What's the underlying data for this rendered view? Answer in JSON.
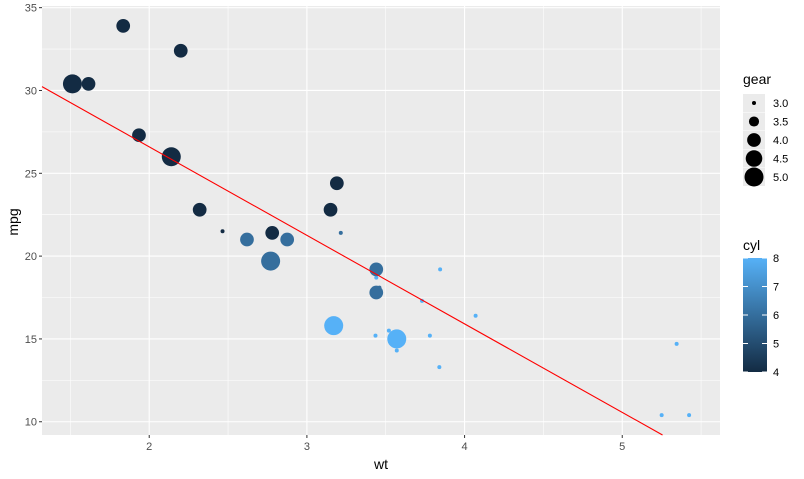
{
  "chart_data": {
    "type": "scatter",
    "xlabel": "wt",
    "ylabel": "mpg",
    "xlim": [
      1.32,
      5.62
    ],
    "ylim": [
      9.2,
      35.1
    ],
    "x_ticks": [
      2,
      3,
      4,
      5
    ],
    "y_ticks": [
      10,
      15,
      20,
      25,
      30,
      35
    ],
    "grid": true,
    "points": [
      {
        "wt": 2.62,
        "mpg": 21.0,
        "cyl": 6,
        "gear": 4
      },
      {
        "wt": 2.875,
        "mpg": 21.0,
        "cyl": 6,
        "gear": 4
      },
      {
        "wt": 2.32,
        "mpg": 22.8,
        "cyl": 4,
        "gear": 4
      },
      {
        "wt": 3.215,
        "mpg": 21.4,
        "cyl": 6,
        "gear": 3
      },
      {
        "wt": 3.44,
        "mpg": 18.7,
        "cyl": 8,
        "gear": 3
      },
      {
        "wt": 3.46,
        "mpg": 18.1,
        "cyl": 6,
        "gear": 3
      },
      {
        "wt": 3.57,
        "mpg": 14.3,
        "cyl": 8,
        "gear": 3
      },
      {
        "wt": 3.19,
        "mpg": 24.4,
        "cyl": 4,
        "gear": 4
      },
      {
        "wt": 3.15,
        "mpg": 22.8,
        "cyl": 4,
        "gear": 4
      },
      {
        "wt": 3.44,
        "mpg": 19.2,
        "cyl": 6,
        "gear": 4
      },
      {
        "wt": 3.44,
        "mpg": 17.8,
        "cyl": 6,
        "gear": 4
      },
      {
        "wt": 4.07,
        "mpg": 16.4,
        "cyl": 8,
        "gear": 3
      },
      {
        "wt": 3.73,
        "mpg": 17.3,
        "cyl": 8,
        "gear": 3
      },
      {
        "wt": 3.78,
        "mpg": 15.2,
        "cyl": 8,
        "gear": 3
      },
      {
        "wt": 5.25,
        "mpg": 10.4,
        "cyl": 8,
        "gear": 3
      },
      {
        "wt": 5.424,
        "mpg": 10.4,
        "cyl": 8,
        "gear": 3
      },
      {
        "wt": 5.345,
        "mpg": 14.7,
        "cyl": 8,
        "gear": 3
      },
      {
        "wt": 2.2,
        "mpg": 32.4,
        "cyl": 4,
        "gear": 4
      },
      {
        "wt": 1.615,
        "mpg": 30.4,
        "cyl": 4,
        "gear": 4
      },
      {
        "wt": 1.835,
        "mpg": 33.9,
        "cyl": 4,
        "gear": 4
      },
      {
        "wt": 2.465,
        "mpg": 21.5,
        "cyl": 4,
        "gear": 3
      },
      {
        "wt": 3.52,
        "mpg": 15.5,
        "cyl": 8,
        "gear": 3
      },
      {
        "wt": 3.435,
        "mpg": 15.2,
        "cyl": 8,
        "gear": 3
      },
      {
        "wt": 3.84,
        "mpg": 13.3,
        "cyl": 8,
        "gear": 3
      },
      {
        "wt": 3.845,
        "mpg": 19.2,
        "cyl": 8,
        "gear": 3
      },
      {
        "wt": 1.935,
        "mpg": 27.3,
        "cyl": 4,
        "gear": 4
      },
      {
        "wt": 2.14,
        "mpg": 26.0,
        "cyl": 4,
        "gear": 5
      },
      {
        "wt": 1.513,
        "mpg": 30.4,
        "cyl": 4,
        "gear": 5
      },
      {
        "wt": 3.17,
        "mpg": 15.8,
        "cyl": 8,
        "gear": 5
      },
      {
        "wt": 2.77,
        "mpg": 19.7,
        "cyl": 6,
        "gear": 5
      },
      {
        "wt": 3.57,
        "mpg": 15.0,
        "cyl": 8,
        "gear": 5
      },
      {
        "wt": 2.78,
        "mpg": 21.4,
        "cyl": 4,
        "gear": 4
      }
    ],
    "trend_line": {
      "intercept": 37.285,
      "slope": -5.344,
      "color": "#ff0000"
    },
    "legend_gear": {
      "title": "gear",
      "entries": [
        {
          "label": "3.0",
          "value": 3.0
        },
        {
          "label": "3.5",
          "value": 3.5
        },
        {
          "label": "4.0",
          "value": 4.0
        },
        {
          "label": "4.5",
          "value": 4.5
        },
        {
          "label": "5.0",
          "value": 5.0
        }
      ]
    },
    "legend_cyl": {
      "title": "cyl",
      "labels": [
        "8",
        "7",
        "6",
        "5",
        "4"
      ],
      "low_color": "#132b43",
      "high_color": "#56b1f7"
    },
    "colors": {
      "panel": "#ebebeb",
      "grid": "#ffffff",
      "point_dark": "#132b43",
      "point_light": "#56b1f7"
    }
  }
}
